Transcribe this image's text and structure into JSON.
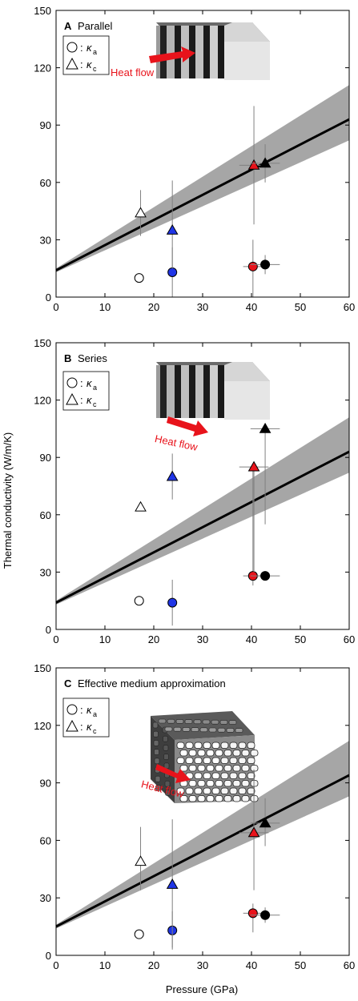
{
  "shared": {
    "ylabel": "Thermal conductivity (W/m/K)",
    "xlabel": "Pressure (GPa)",
    "legend": [
      {
        "marker": "circle",
        "symbol": "κ",
        "subscript": "a"
      },
      {
        "marker": "triangle",
        "symbol": "κ",
        "subscript": "c"
      }
    ],
    "heat_flow_label": "Heat flow",
    "colors": {
      "red": "#e8131b",
      "blue": "#1f35e6",
      "black": "#000000",
      "white": "#ffffff",
      "band": "#a6a6a6",
      "arrow": "#e8131b"
    }
  },
  "chart_data": [
    {
      "panel": "A",
      "title": "Parallel",
      "type": "scatter",
      "xlim": [
        0,
        60
      ],
      "ylim": [
        0,
        150
      ],
      "xticks": [
        "0",
        "10",
        "20",
        "30",
        "40",
        "50",
        "60"
      ],
      "yticks": [
        "0",
        "30",
        "60",
        "90",
        "120",
        "150"
      ],
      "fit_line": {
        "x": [
          0,
          60
        ],
        "y": [
          14,
          93
        ]
      },
      "band": {
        "x": [
          0,
          60
        ],
        "upper": [
          15,
          111
        ],
        "lower": [
          13,
          82
        ]
      },
      "points": [
        {
          "marker": "circle",
          "fill": "white",
          "x": 17,
          "y": 10
        },
        {
          "marker": "circle",
          "fill": "blue",
          "x": 23.8,
          "y": 13,
          "yerr": [
            13,
            13
          ]
        },
        {
          "marker": "circle",
          "fill": "red",
          "x": 40.3,
          "y": 16,
          "yerr": [
            16,
            14
          ],
          "xerr": [
            2,
            2
          ]
        },
        {
          "marker": "circle",
          "fill": "black",
          "x": 42.8,
          "y": 17,
          "yerr": [
            5,
            5
          ],
          "xerr": [
            3,
            3
          ]
        },
        {
          "marker": "triangle",
          "fill": "white",
          "x": 17.3,
          "y": 44,
          "yerr": [
            12,
            12
          ]
        },
        {
          "marker": "triangle",
          "fill": "blue",
          "x": 23.8,
          "y": 35,
          "yerr": [
            20,
            26
          ]
        },
        {
          "marker": "triangle",
          "fill": "red",
          "x": 40.5,
          "y": 69,
          "yerr": [
            31,
            31
          ],
          "xerr": [
            3,
            3
          ]
        },
        {
          "marker": "triangle",
          "fill": "black",
          "x": 42.8,
          "y": 70,
          "yerr": [
            10,
            10
          ],
          "xerr": [
            3,
            3
          ]
        }
      ]
    },
    {
      "panel": "B",
      "title": "Series",
      "type": "scatter",
      "xlim": [
        0,
        60
      ],
      "ylim": [
        0,
        150
      ],
      "xticks": [
        "0",
        "10",
        "20",
        "30",
        "40",
        "50",
        "60"
      ],
      "yticks": [
        "0",
        "30",
        "60",
        "90",
        "120",
        "150"
      ],
      "fit_line": {
        "x": [
          0,
          60
        ],
        "y": [
          14,
          93
        ]
      },
      "band": {
        "x": [
          0,
          60
        ],
        "upper": [
          15,
          111
        ],
        "lower": [
          13,
          82
        ]
      },
      "points": [
        {
          "marker": "circle",
          "fill": "white",
          "x": 17,
          "y": 15
        },
        {
          "marker": "circle",
          "fill": "blue",
          "x": 23.8,
          "y": 14,
          "yerr": [
            12,
            12
          ]
        },
        {
          "marker": "circle",
          "fill": "red",
          "x": 40.3,
          "y": 28,
          "yerr": [
            5,
            58
          ],
          "xerr": [
            2,
            2
          ]
        },
        {
          "marker": "circle",
          "fill": "black",
          "x": 42.8,
          "y": 28,
          "yerr": [
            2,
            2
          ],
          "xerr": [
            3,
            3
          ]
        },
        {
          "marker": "triangle",
          "fill": "white",
          "x": 17.3,
          "y": 64
        },
        {
          "marker": "triangle",
          "fill": "blue",
          "x": 23.8,
          "y": 80,
          "yerr": [
            12,
            12
          ]
        },
        {
          "marker": "triangle",
          "fill": "red",
          "x": 40.5,
          "y": 85,
          "yerr": [
            55,
            0
          ],
          "xerr": [
            3,
            3
          ]
        },
        {
          "marker": "triangle",
          "fill": "black",
          "x": 42.8,
          "y": 105,
          "yerr": [
            50,
            0
          ],
          "xerr": [
            3,
            3
          ]
        }
      ]
    },
    {
      "panel": "C",
      "title": "Effective medium approximation",
      "type": "scatter",
      "xlim": [
        0,
        60
      ],
      "ylim": [
        0,
        150
      ],
      "xticks": [
        "0",
        "10",
        "20",
        "30",
        "40",
        "50",
        "60"
      ],
      "yticks": [
        "0",
        "30",
        "60",
        "90",
        "120",
        "150"
      ],
      "fit_line": {
        "x": [
          0,
          60
        ],
        "y": [
          15,
          94
        ]
      },
      "band": {
        "x": [
          0,
          60
        ],
        "upper": [
          16,
          112
        ],
        "lower": [
          14,
          83
        ]
      },
      "points": [
        {
          "marker": "circle",
          "fill": "white",
          "x": 17,
          "y": 11
        },
        {
          "marker": "circle",
          "fill": "blue",
          "x": 23.8,
          "y": 13,
          "yerr": [
            10,
            10
          ]
        },
        {
          "marker": "circle",
          "fill": "red",
          "x": 40.3,
          "y": 22,
          "yerr": [
            10,
            5
          ],
          "xerr": [
            2,
            2
          ]
        },
        {
          "marker": "circle",
          "fill": "black",
          "x": 42.8,
          "y": 21,
          "yerr": [
            4,
            4
          ],
          "xerr": [
            3,
            3
          ]
        },
        {
          "marker": "triangle",
          "fill": "white",
          "x": 17.3,
          "y": 49,
          "yerr": [
            15,
            18
          ]
        },
        {
          "marker": "triangle",
          "fill": "blue",
          "x": 23.8,
          "y": 37,
          "yerr": [
            33,
            34
          ]
        },
        {
          "marker": "triangle",
          "fill": "red",
          "x": 40.5,
          "y": 64,
          "yerr": [
            30,
            33
          ],
          "xerr": [
            3,
            3
          ]
        },
        {
          "marker": "triangle",
          "fill": "black",
          "x": 42.8,
          "y": 69,
          "yerr": [
            12,
            13
          ],
          "xerr": [
            3,
            3
          ]
        }
      ]
    }
  ]
}
